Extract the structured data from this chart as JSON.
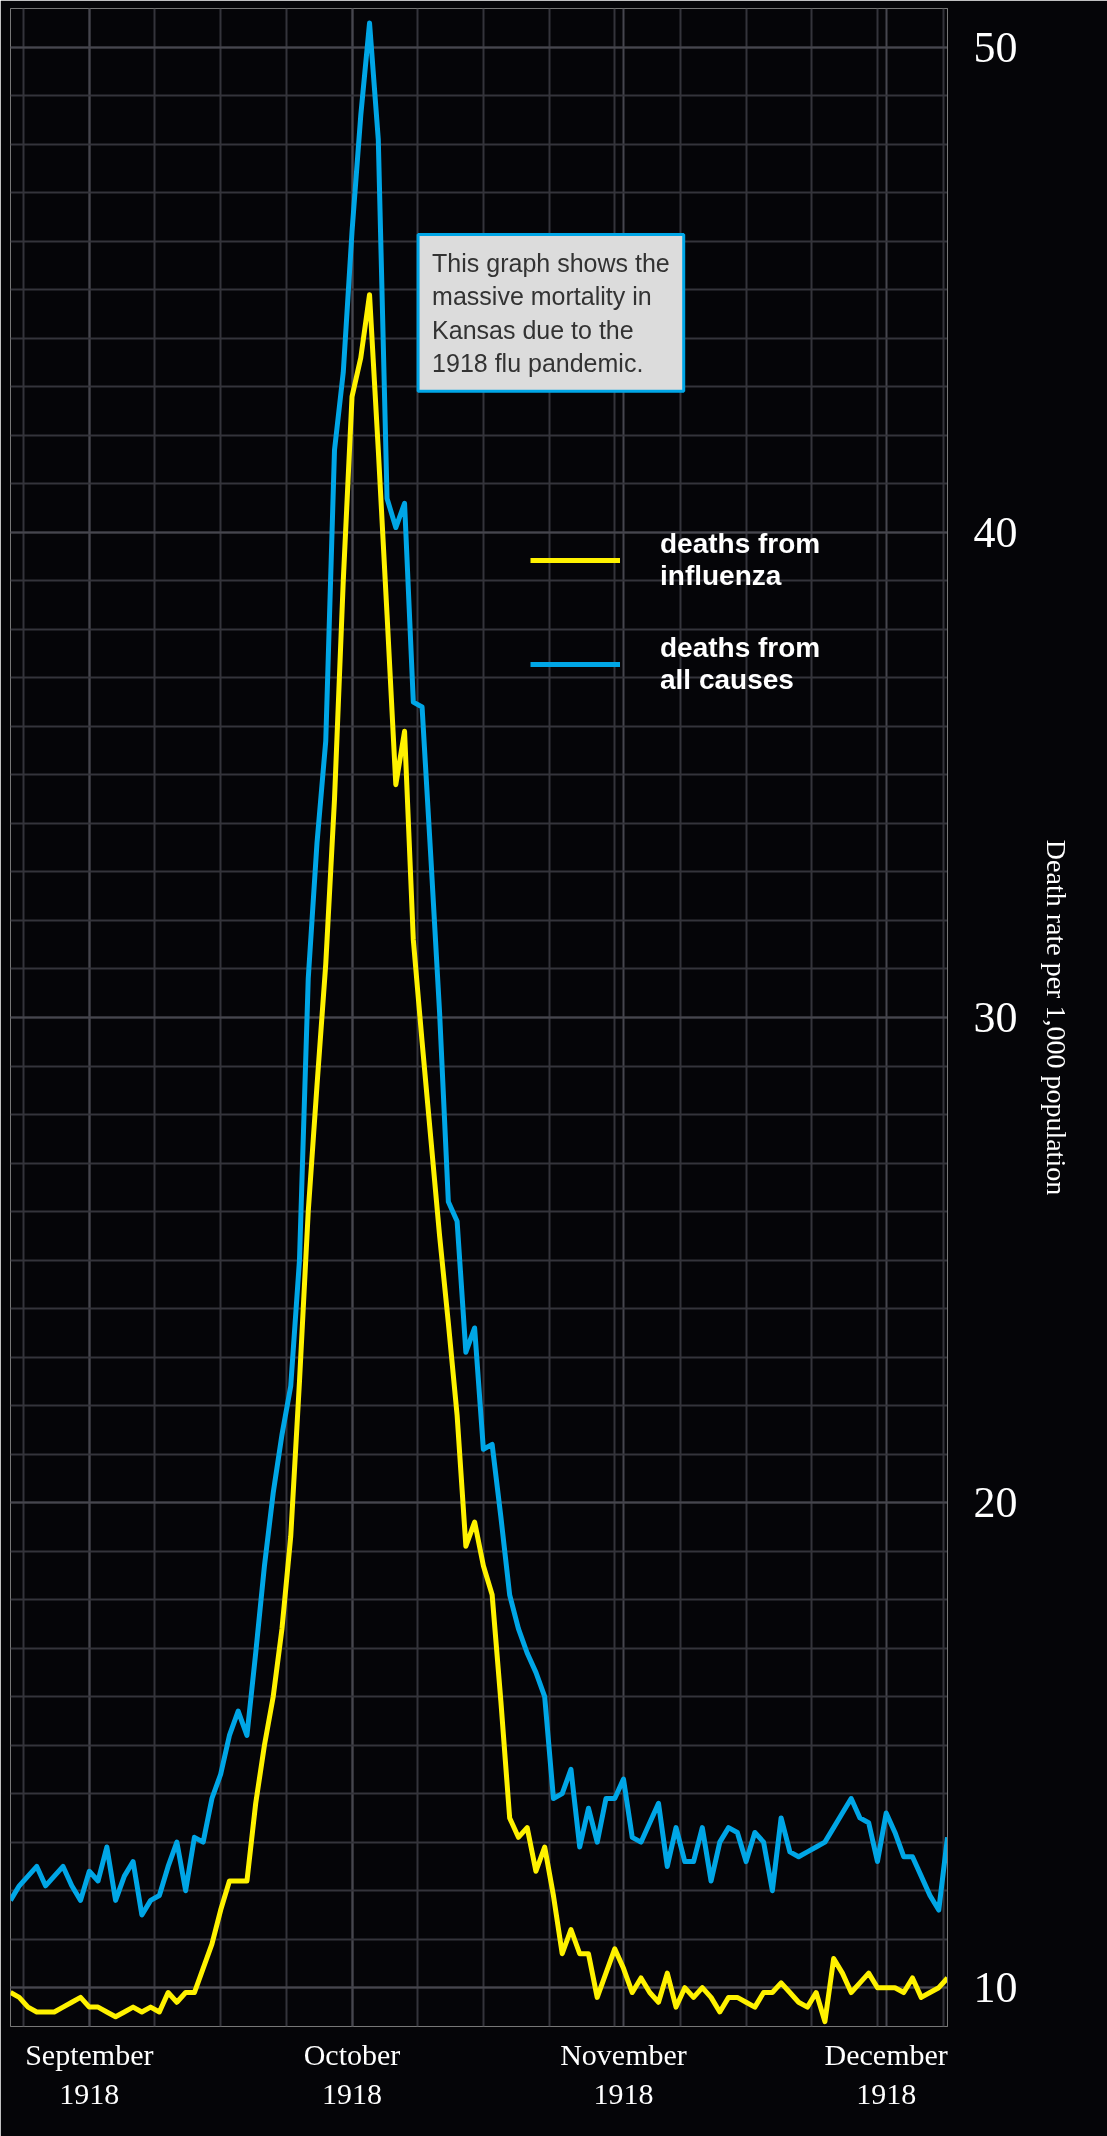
{
  "chart_data": {
    "type": "line",
    "ylabel": "Death rate per 1,000 population",
    "annotations": [
      "This graph shows the\nmassive mortality in\nKansas due to the\n1918 flu pandemic."
    ],
    "x": [
      "1918-08-23",
      "1918-08-24",
      "1918-08-25",
      "1918-08-26",
      "1918-08-27",
      "1918-08-28",
      "1918-08-29",
      "1918-08-30",
      "1918-08-31",
      "1918-09-01",
      "1918-09-02",
      "1918-09-03",
      "1918-09-04",
      "1918-09-05",
      "1918-09-06",
      "1918-09-07",
      "1918-09-08",
      "1918-09-09",
      "1918-09-10",
      "1918-09-11",
      "1918-09-12",
      "1918-09-13",
      "1918-09-14",
      "1918-09-15",
      "1918-09-16",
      "1918-09-17",
      "1918-09-18",
      "1918-09-19",
      "1918-09-20",
      "1918-09-21",
      "1918-09-22",
      "1918-09-23",
      "1918-09-24",
      "1918-09-25",
      "1918-09-26",
      "1918-09-27",
      "1918-09-28",
      "1918-09-29",
      "1918-09-30",
      "1918-10-01",
      "1918-10-02",
      "1918-10-03",
      "1918-10-04",
      "1918-10-05",
      "1918-10-06",
      "1918-10-07",
      "1918-10-08",
      "1918-10-09",
      "1918-10-10",
      "1918-10-11",
      "1918-10-12",
      "1918-10-13",
      "1918-10-14",
      "1918-10-15",
      "1918-10-16",
      "1918-10-17",
      "1918-10-18",
      "1918-10-19",
      "1918-10-20",
      "1918-10-21",
      "1918-10-22",
      "1918-10-23",
      "1918-10-24",
      "1918-10-25",
      "1918-10-26",
      "1918-10-27",
      "1918-10-28",
      "1918-10-29",
      "1918-10-30",
      "1918-10-31",
      "1918-11-01",
      "1918-11-02",
      "1918-11-03",
      "1918-11-04",
      "1918-11-05",
      "1918-11-06",
      "1918-11-07",
      "1918-11-08",
      "1918-11-09",
      "1918-11-10",
      "1918-11-11",
      "1918-11-12",
      "1918-11-13",
      "1918-11-14",
      "1918-11-15",
      "1918-11-16",
      "1918-11-17",
      "1918-11-18",
      "1918-11-19",
      "1918-11-20",
      "1918-11-21",
      "1918-11-22",
      "1918-11-23",
      "1918-11-24",
      "1918-11-25",
      "1918-11-26",
      "1918-11-27",
      "1918-11-28",
      "1918-11-29",
      "1918-11-30",
      "1918-12-01",
      "1918-12-02",
      "1918-12-03",
      "1918-12-04",
      "1918-12-05",
      "1918-12-06",
      "1918-12-07",
      "1918-12-08"
    ],
    "series": [
      {
        "name": "deaths from\ninfluenza",
        "color": "#fff200",
        "values": [
          9.9,
          9.8,
          9.6,
          9.5,
          9.5,
          9.5,
          9.6,
          9.7,
          9.8,
          9.6,
          9.6,
          9.5,
          9.4,
          9.5,
          9.6,
          9.5,
          9.6,
          9.5,
          9.9,
          9.7,
          9.9,
          9.9,
          10.4,
          10.9,
          11.6,
          12.2,
          12.2,
          12.2,
          13.8,
          15.0,
          16.0,
          17.4,
          19.3,
          22.5,
          26.0,
          28.6,
          31.1,
          34.5,
          39.0,
          42.8,
          43.6,
          44.9,
          41.7,
          38.3,
          34.8,
          35.9,
          31.6,
          29.5,
          27.5,
          25.5,
          23.7,
          21.8,
          19.1,
          19.6,
          18.7,
          18.1,
          15.9,
          13.5,
          13.1,
          13.3,
          12.4,
          12.9,
          11.9,
          10.7,
          11.2,
          10.7,
          10.7,
          9.8,
          10.3,
          10.8,
          10.4,
          9.9,
          10.2,
          9.9,
          9.7,
          10.3,
          9.6,
          10.0,
          9.8,
          10.0,
          9.8,
          9.5,
          9.8,
          9.8,
          9.7,
          9.6,
          9.9,
          9.9,
          10.1,
          9.9,
          9.7,
          9.6,
          9.9,
          9.3,
          10.6,
          10.3,
          9.9,
          10.1,
          10.3,
          10.0,
          10.0,
          10.0,
          9.9,
          10.2,
          9.8,
          9.9,
          10.0,
          10.2
        ]
      },
      {
        "name": "deaths from\nall causes",
        "color": "#00a6e6",
        "values": [
          11.8,
          12.1,
          12.3,
          12.5,
          12.1,
          12.3,
          12.5,
          12.1,
          11.8,
          12.4,
          12.2,
          12.9,
          11.8,
          12.3,
          12.6,
          11.5,
          11.8,
          11.9,
          12.5,
          13.0,
          12.0,
          13.1,
          13.0,
          13.9,
          14.4,
          15.2,
          15.7,
          15.2,
          16.9,
          18.7,
          20.2,
          21.4,
          22.4,
          25.0,
          30.8,
          33.6,
          35.7,
          41.7,
          43.3,
          46.2,
          48.6,
          50.5,
          48.1,
          40.7,
          40.1,
          40.6,
          36.5,
          36.4,
          33.3,
          30.1,
          26.2,
          25.8,
          23.1,
          23.6,
          21.1,
          21.2,
          19.7,
          18.1,
          17.4,
          16.9,
          16.5,
          16.0,
          13.9,
          14.0,
          14.5,
          12.9,
          13.7,
          13.0,
          13.9,
          13.9,
          14.3,
          13.1,
          13.0,
          13.4,
          13.8,
          12.5,
          13.3,
          12.6,
          12.6,
          13.3,
          12.2,
          13.0,
          13.3,
          13.2,
          12.6,
          13.2,
          13.0,
          12.0,
          13.5,
          12.8,
          12.7,
          12.8,
          12.9,
          13.0,
          13.3,
          13.6,
          13.9,
          13.5,
          13.4,
          12.6,
          13.6,
          13.2,
          12.7,
          12.7,
          12.3,
          11.9,
          11.6,
          13.1
        ]
      }
    ],
    "xlim": [
      "1918-08-23",
      "1918-12-08"
    ],
    "xticks": [
      {
        "value": "1918-09-01",
        "label": "September\n1918"
      },
      {
        "value": "1918-10-01",
        "label": "October\n1918"
      },
      {
        "value": "1918-11-01",
        "label": "November\n1918"
      },
      {
        "value": "1918-12-01",
        "label": "December\n1918"
      }
    ],
    "ylim": [
      9.2,
      50.8
    ],
    "yticks": [
      10,
      20,
      30,
      40,
      50
    ],
    "grid": true,
    "legend": "top right",
    "line_style": "solid"
  }
}
